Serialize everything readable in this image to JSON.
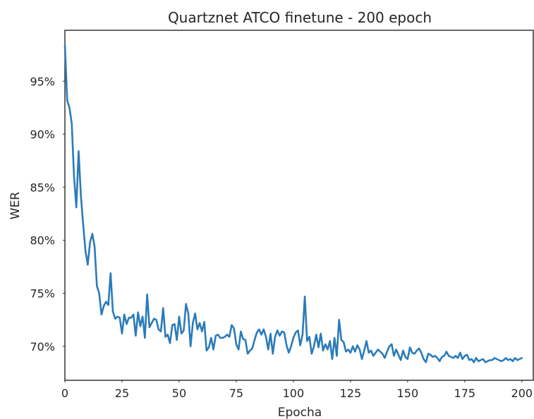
{
  "chart_data": {
    "type": "line",
    "title": "Quartznet ATCO finetune - 200 epoch",
    "xlabel": "Epocha",
    "ylabel": "WER",
    "xlim": [
      0,
      205
    ],
    "ylim": [
      66.8,
      99.8
    ],
    "grid": false,
    "x_ticks": [
      0,
      25,
      50,
      75,
      100,
      125,
      150,
      175,
      200
    ],
    "x_tick_labels": [
      "0",
      "25",
      "50",
      "75",
      "100",
      "125",
      "150",
      "175",
      "200"
    ],
    "y_ticks": [
      70,
      75,
      80,
      85,
      90,
      95
    ],
    "y_tick_labels": [
      "70%",
      "75%",
      "80%",
      "85%",
      "90%",
      "95%"
    ],
    "series": [
      {
        "color": "#2b7bb9",
        "x": [
          0,
          1,
          2,
          3,
          4,
          5,
          6,
          7,
          8,
          9,
          10,
          11,
          12,
          13,
          14,
          15,
          16,
          17,
          18,
          19,
          20,
          21,
          22,
          23,
          24,
          25,
          26,
          27,
          28,
          29,
          30,
          31,
          32,
          33,
          34,
          35,
          36,
          37,
          38,
          39,
          40,
          41,
          42,
          43,
          44,
          45,
          46,
          47,
          48,
          49,
          50,
          51,
          52,
          53,
          54,
          55,
          56,
          57,
          58,
          59,
          60,
          61,
          62,
          63,
          64,
          65,
          66,
          67,
          68,
          69,
          70,
          71,
          72,
          73,
          74,
          75,
          76,
          77,
          78,
          79,
          80,
          81,
          82,
          83,
          84,
          85,
          86,
          87,
          88,
          89,
          90,
          91,
          92,
          93,
          94,
          95,
          96,
          97,
          98,
          99,
          100,
          101,
          102,
          103,
          104,
          105,
          106,
          107,
          108,
          109,
          110,
          111,
          112,
          113,
          114,
          115,
          116,
          117,
          118,
          119,
          120,
          121,
          122,
          123,
          124,
          125,
          126,
          127,
          128,
          129,
          130,
          131,
          132,
          133,
          134,
          135,
          136,
          137,
          138,
          139,
          140,
          141,
          142,
          143,
          144,
          145,
          146,
          147,
          148,
          149,
          150,
          151,
          152,
          153,
          154,
          155,
          156,
          157,
          158,
          159,
          160,
          161,
          162,
          163,
          164,
          165,
          166,
          167,
          168,
          169,
          170,
          171,
          172,
          173,
          174,
          175,
          176,
          177,
          178,
          179,
          180,
          181,
          182,
          183,
          184,
          185,
          186,
          187,
          188,
          189,
          190,
          191,
          192,
          193,
          194,
          195,
          196,
          197,
          198,
          199,
          200
        ],
        "values": [
          98.4,
          93.2,
          92.5,
          91.0,
          86.0,
          83.1,
          88.4,
          84.2,
          81.5,
          79.0,
          77.7,
          79.8,
          80.6,
          79.4,
          75.7,
          75.0,
          73.0,
          73.8,
          74.2,
          73.9,
          76.9,
          73.3,
          72.6,
          72.8,
          72.7,
          71.2,
          73.0,
          72.1,
          72.7,
          72.7,
          73.0,
          71.0,
          73.2,
          71.9,
          72.8,
          70.8,
          74.9,
          71.8,
          72.2,
          72.6,
          72.5,
          71.6,
          71.4,
          73.6,
          70.9,
          71.1,
          70.3,
          72.0,
          72.1,
          70.6,
          72.8,
          71.2,
          71.5,
          74.0,
          73.1,
          70.0,
          72.2,
          73.1,
          71.6,
          72.2,
          71.4,
          72.3,
          69.6,
          69.9,
          70.8,
          69.7,
          71.0,
          71.1,
          70.8,
          70.8,
          70.9,
          71.1,
          70.9,
          72.0,
          71.7,
          70.2,
          69.7,
          71.4,
          70.7,
          70.6,
          69.3,
          69.6,
          69.8,
          70.6,
          71.3,
          71.6,
          71.1,
          71.6,
          70.9,
          69.7,
          71.2,
          69.3,
          70.9,
          71.5,
          71.0,
          71.4,
          71.3,
          70.1,
          69.4,
          70.0,
          70.8,
          71.3,
          71.5,
          70.1,
          71.1,
          74.7,
          70.5,
          70.9,
          69.3,
          70.0,
          71.1,
          69.9,
          71.2,
          69.6,
          70.2,
          69.7,
          70.5,
          68.8,
          70.8,
          69.1,
          72.5,
          70.6,
          70.4,
          69.5,
          69.7,
          69.4,
          70.0,
          69.5,
          70.1,
          69.7,
          68.8,
          69.6,
          70.5,
          69.4,
          69.6,
          69.1,
          69.4,
          69.7,
          69.5,
          69.3,
          68.9,
          69.5,
          70.0,
          70.2,
          69.1,
          69.7,
          69.2,
          68.7,
          69.6,
          69.0,
          68.8,
          69.9,
          69.4,
          69.3,
          69.6,
          69.8,
          69.4,
          68.8,
          68.5,
          69.3,
          69.2,
          69.0,
          69.1,
          68.9,
          68.6,
          69.0,
          69.1,
          69.5,
          69.1,
          69.0,
          68.9,
          69.1,
          68.9,
          69.4,
          68.8,
          69.1,
          69.2,
          68.7,
          68.8,
          68.5,
          68.9,
          68.6,
          68.7,
          68.8,
          68.5,
          68.6,
          68.7,
          68.7,
          68.9,
          68.8,
          68.7,
          68.6,
          68.7,
          68.9,
          68.7,
          68.8,
          68.6,
          68.9,
          68.7,
          68.8,
          68.9
        ]
      }
    ]
  }
}
